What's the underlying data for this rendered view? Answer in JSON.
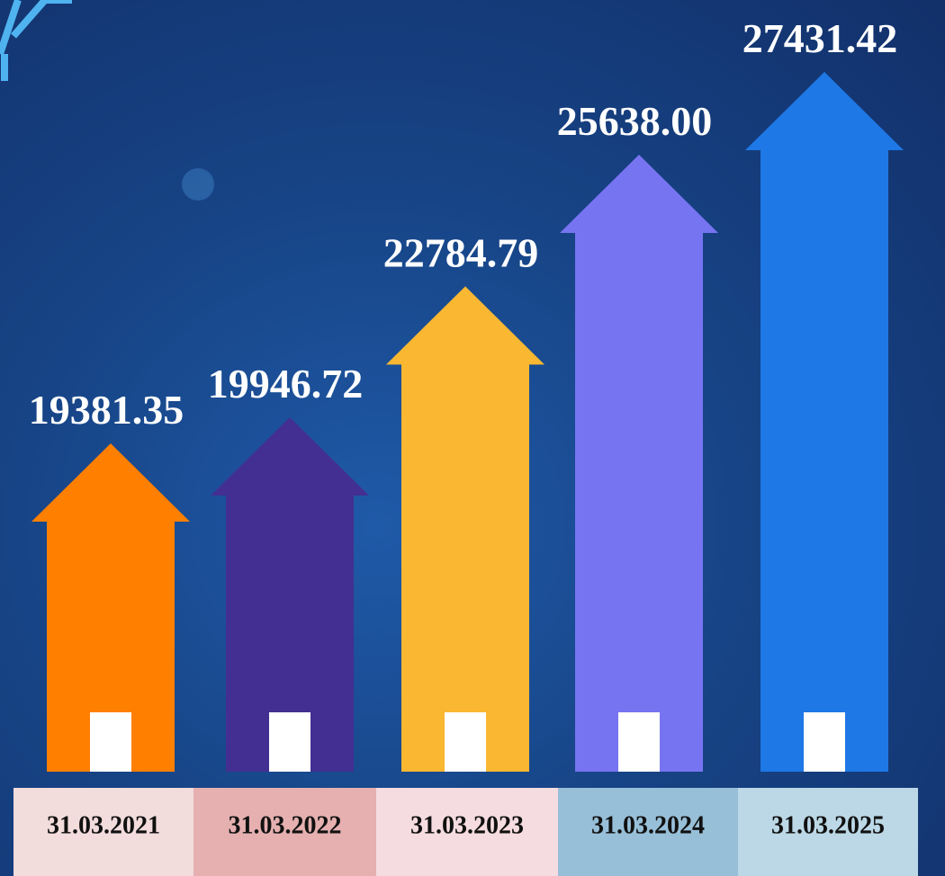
{
  "chart_data": {
    "type": "bar",
    "categories": [
      "31.03.2021",
      "31.03.2022",
      "31.03.2023",
      "31.03.2024",
      "31.03.2025"
    ],
    "values": [
      19381.35,
      19946.72,
      22784.79,
      25638.0,
      27431.42
    ],
    "value_labels": [
      "19381.35",
      "19946.72",
      "22784.79",
      "25638.00",
      "27431.42"
    ],
    "colors": [
      "#ff7f00",
      "#432f91",
      "#f9b732",
      "#7774f2",
      "#1e78e6"
    ]
  }
}
